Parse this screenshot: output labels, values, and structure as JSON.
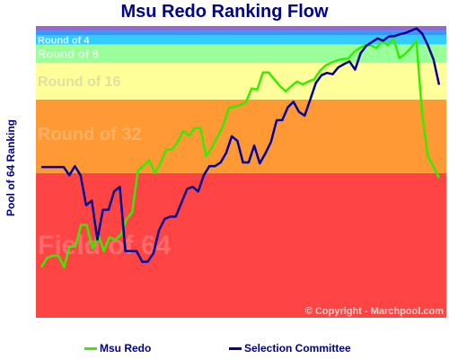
{
  "chart_data": {
    "type": "line",
    "title": "Msu Redo Ranking Flow",
    "ylabel": "Pool of 64 Ranking",
    "ylim": [
      64,
      1
    ],
    "bands": [
      {
        "label": "Field of 64",
        "from": 64,
        "to": 32.5,
        "color": "#ff4444",
        "text_color": "#ff6a6a"
      },
      {
        "label": "Round of 32",
        "from": 32.5,
        "to": 16.5,
        "color": "#ff9933",
        "text_color": "#ffb266"
      },
      {
        "label": "Round of 16",
        "from": 16.5,
        "to": 8.5,
        "color": "#ffff99",
        "text_color": "#e0e0a0"
      },
      {
        "label": "Round of 8",
        "from": 8.5,
        "to": 4.5,
        "color": "#99ff99",
        "text_color": "#e0ffe0"
      },
      {
        "label": "Round of 4",
        "from": 4.5,
        "to": 2.5,
        "color": "#33ccff",
        "text_color": "#e0f7ff"
      },
      {
        "label": "",
        "from": 2.5,
        "to": 1.5,
        "color": "#3399ff",
        "text_color": "#ffffff"
      },
      {
        "label": "",
        "from": 1.5,
        "to": 0.5,
        "color": "#9966cc",
        "text_color": "#ffffff"
      }
    ],
    "series": [
      {
        "name": "Msu Redo",
        "color": "#33ee00",
        "values": [
          53.0,
          51.0,
          50.5,
          50.5,
          53.0,
          48.5,
          48.5,
          43.8,
          43.8,
          49.0,
          45.8,
          49.5,
          46.5,
          47.0,
          46.0,
          42.5,
          41.0,
          31.9,
          30.9,
          29.7,
          32.5,
          30.3,
          27.4,
          27.4,
          25.7,
          23.3,
          24.4,
          22.7,
          22.7,
          28.8,
          27.0,
          24.6,
          22.2,
          18.3,
          18.1,
          17.7,
          17.1,
          14.1,
          14.3,
          10.6,
          10.6,
          12.1,
          13.6,
          14.7,
          13.6,
          12.6,
          13.2,
          12.6,
          12.1,
          10.3,
          9.1,
          8.5,
          8.0,
          7.7,
          7.6,
          6.2,
          5.3,
          4.7,
          4.7,
          5.3,
          3.7,
          4.7,
          3.2,
          7.5,
          6.6,
          5.3,
          3.7,
          19.4,
          28.8,
          31.1,
          33.6
        ]
      },
      {
        "name": "Selection Committee",
        "color": "#000099",
        "values": [
          31.2,
          31.2,
          31.2,
          31.2,
          31.2,
          33.0,
          31.0,
          33.0,
          39.5,
          38.5,
          47.0,
          40.5,
          40.5,
          36.5,
          35.5,
          49.5,
          49.5,
          49.5,
          51.8,
          51.8,
          50.0,
          45.0,
          42.5,
          42.0,
          42.0,
          39.0,
          36.0,
          35.5,
          36.5,
          33.0,
          31.0,
          31.0,
          30.2,
          28.1,
          24.5,
          25.5,
          30.2,
          30.2,
          26.5,
          30.4,
          28.2,
          25.7,
          21.0,
          21.0,
          18.2,
          17.0,
          19.2,
          20.0,
          16.5,
          12.9,
          11.2,
          10.7,
          11.0,
          9.5,
          8.8,
          8.2,
          10.0,
          6.4,
          4.8,
          4.0,
          3.2,
          3.7,
          2.8,
          2.7,
          2.3,
          2.0,
          1.5,
          1.0,
          2.2,
          4.7,
          7.8,
          13.3
        ]
      }
    ],
    "copyright": "© Copyright - Marchpool.com",
    "grid": false,
    "legend_position": "bottom"
  }
}
